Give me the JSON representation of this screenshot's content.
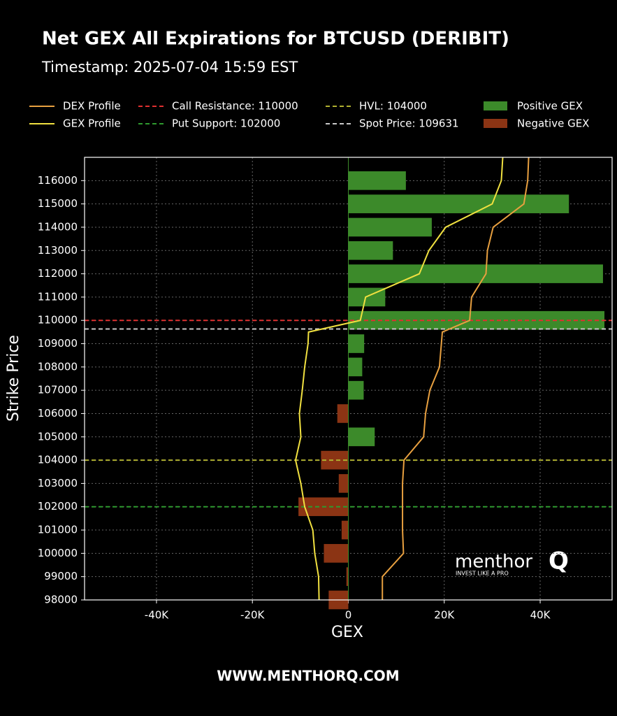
{
  "chart_data": {
    "type": "bar",
    "title": "Net GEX All Expirations for BTCUSD (DERIBIT)",
    "subtitle": "Timestamp: 2025-07-04 15:59 EST",
    "xlabel": "GEX",
    "ylabel": "Strike Price",
    "footer": "WWW.MENTHORQ.COM",
    "logo": {
      "text": "menthor",
      "mark": "Q",
      "tagline": "INVEST LIKE A PRO"
    },
    "y": [
      98000,
      99000,
      100000,
      101000,
      102000,
      103000,
      104000,
      105000,
      106000,
      107000,
      108000,
      109000,
      110000,
      111000,
      112000,
      113000,
      114000,
      115000,
      116000
    ],
    "series": [
      {
        "name": "Positive GEX",
        "color": "#3c8a2a",
        "values": [
          null,
          null,
          null,
          null,
          null,
          null,
          null,
          5500,
          null,
          3200,
          2900,
          3300,
          53400,
          7700,
          53100,
          9300,
          17400,
          46000,
          12000
        ]
      },
      {
        "name": "Negative GEX",
        "color": "#8b3414",
        "values": [
          -4100,
          -400,
          -5100,
          -1400,
          -10400,
          -2000,
          -5700,
          null,
          -2300,
          null,
          null,
          null,
          null,
          null,
          null,
          null,
          null,
          null,
          null
        ]
      }
    ],
    "lines": [
      {
        "name": "DEX Profile",
        "color": "#e8a040",
        "y": [
          98000,
          99000,
          100000,
          101000,
          102000,
          103000,
          104000,
          105000,
          106000,
          107000,
          108000,
          109000,
          109500,
          110000,
          111000,
          112000,
          113000,
          114000,
          115000,
          116000,
          117000
        ],
        "values": [
          7100,
          7100,
          11500,
          11300,
          11300,
          11300,
          11600,
          15700,
          16100,
          17000,
          19000,
          19400,
          19600,
          25300,
          25700,
          28700,
          29000,
          30200,
          36600,
          37400,
          37600
        ]
      },
      {
        "name": "GEX Profile",
        "color": "#f0e040",
        "y": [
          98000,
          99000,
          100000,
          101000,
          102000,
          103000,
          104000,
          105000,
          106000,
          107000,
          108000,
          109000,
          109500,
          110000,
          111000,
          112000,
          113000,
          114000,
          115000,
          116000,
          117000
        ],
        "values": [
          -6100,
          -6200,
          -7000,
          -7400,
          -9100,
          -9900,
          -11000,
          -9900,
          -10200,
          -9600,
          -9100,
          -8400,
          -8300,
          2500,
          3600,
          14800,
          16800,
          20300,
          30000,
          31900,
          32200
        ]
      }
    ],
    "ref_lines": [
      {
        "label": "Call Resistance: 110000",
        "value": 110000,
        "color": "#e03030"
      },
      {
        "label": "Put Support: 102000",
        "value": 102000,
        "color": "#2e9a2e"
      },
      {
        "label": "HVL: 104000",
        "value": 104000,
        "color": "#b0b030"
      },
      {
        "label": "Spot Price: 109631",
        "value": 109631,
        "color": "#c8c8c8"
      }
    ],
    "xlim": [
      -55000,
      55000
    ],
    "ylim": [
      98000,
      117000
    ],
    "xticks": [
      {
        "value": -40000,
        "label": "-40K"
      },
      {
        "value": -20000,
        "label": "-20K"
      },
      0,
      {
        "value": 20000,
        "label": "20K"
      },
      {
        "value": 40000,
        "label": "40K"
      }
    ],
    "yticks": [
      98000,
      99000,
      100000,
      101000,
      102000,
      103000,
      104000,
      105000,
      106000,
      107000,
      108000,
      109000,
      110000,
      111000,
      112000,
      113000,
      114000,
      115000,
      116000
    ],
    "grid": true
  }
}
